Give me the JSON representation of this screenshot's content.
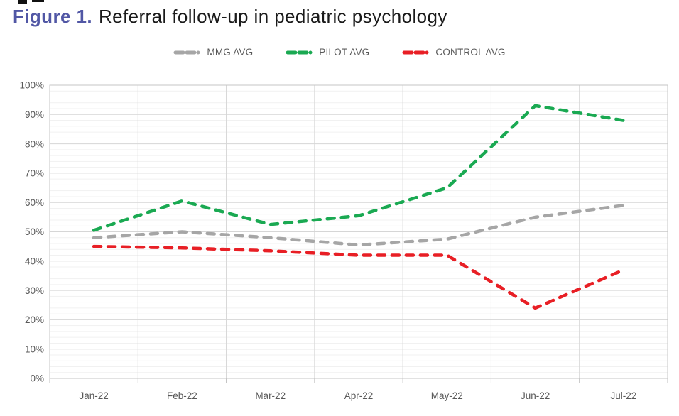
{
  "figure": {
    "label": "Figure 1.",
    "title": "Referral follow-up in pediatric psychology",
    "label_color": "#5157A5",
    "title_color": "#1A1A1A"
  },
  "legend": {
    "position": "top",
    "items": [
      {
        "name": "MMG AVG",
        "color": "#A6A6A6"
      },
      {
        "name": "PILOT AVG",
        "color": "#1AA952"
      },
      {
        "name": "CONTROL AVG",
        "color": "#E81F25"
      }
    ]
  },
  "axes": {
    "y_tick_labels": [
      "0%",
      "10%",
      "20%",
      "30%",
      "40%",
      "50%",
      "60%",
      "70%",
      "80%",
      "90%",
      "100%"
    ],
    "text_color": "#595959"
  },
  "chart_data": {
    "type": "line",
    "title": "Referral follow-up in pediatric psychology",
    "xlabel": "",
    "ylabel": "",
    "categories": [
      "Jan-22",
      "Feb-22",
      "Mar-22",
      "Apr-22",
      "May-22",
      "Jun-22",
      "Jul-22"
    ],
    "series": [
      {
        "name": "MMG AVG",
        "color": "#A6A6A6",
        "style": "dashed",
        "values": [
          48,
          50,
          48,
          45.5,
          47.5,
          55,
          59
        ]
      },
      {
        "name": "PILOT AVG",
        "color": "#1AA952",
        "style": "dashed",
        "values": [
          50.5,
          60.5,
          52.5,
          55.5,
          65,
          93,
          88
        ]
      },
      {
        "name": "CONTROL AVG",
        "color": "#E81F25",
        "style": "dashed",
        "values": [
          45,
          44.5,
          43.5,
          42,
          42,
          24,
          37
        ]
      }
    ],
    "ylim": [
      0,
      100
    ],
    "y_major_step": 10,
    "y_minor_step": 2,
    "grid": true,
    "legend_position": "top"
  },
  "colors": {
    "grid_major": "#D6D6D6",
    "grid_minor": "#F1F1F1",
    "plot_border": "#C6C6C6",
    "tick": "#BFBFBF"
  }
}
